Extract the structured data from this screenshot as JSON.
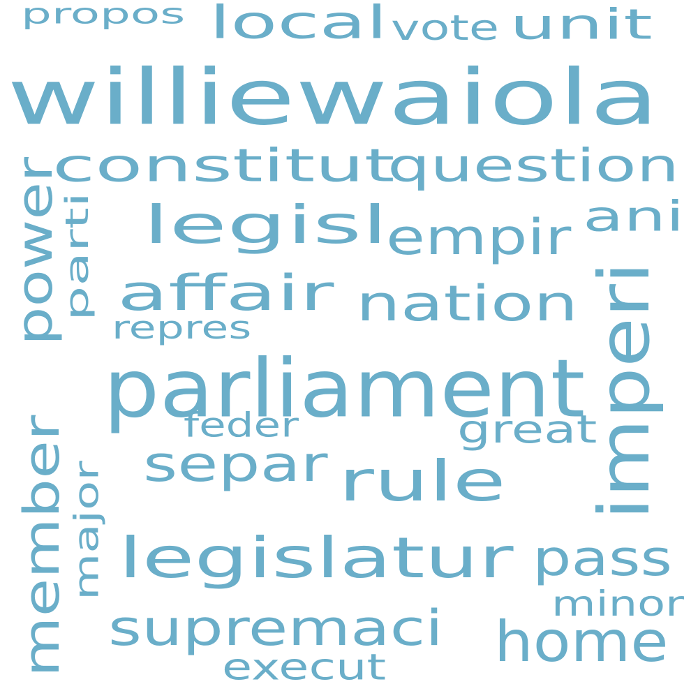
{
  "word_color": "#6aaec9",
  "background": "#ffffff",
  "words": [
    {
      "id": "williewaiola",
      "text": "williewaiola",
      "orientation": "horizontal"
    },
    {
      "id": "parliament",
      "text": "parliament",
      "orientation": "horizontal"
    },
    {
      "id": "constitut",
      "text": "constitut",
      "orientation": "horizontal"
    },
    {
      "id": "question",
      "text": "question",
      "orientation": "horizontal"
    },
    {
      "id": "legisl",
      "text": "legisl",
      "orientation": "horizontal"
    },
    {
      "id": "legislatur",
      "text": "legislatur",
      "orientation": "horizontal"
    },
    {
      "id": "rule",
      "text": "rule",
      "orientation": "horizontal"
    },
    {
      "id": "home",
      "text": "home",
      "orientation": "horizontal"
    },
    {
      "id": "imperi",
      "text": "imperi",
      "orientation": "vertical"
    },
    {
      "id": "member",
      "text": "member",
      "orientation": "vertical"
    },
    {
      "id": "power",
      "text": "power",
      "orientation": "vertical"
    },
    {
      "id": "supremaci",
      "text": "supremaci",
      "orientation": "horizontal"
    },
    {
      "id": "affair",
      "text": "affair",
      "orientation": "horizontal"
    },
    {
      "id": "nation",
      "text": "nation",
      "orientation": "horizontal"
    },
    {
      "id": "empir",
      "text": "empir",
      "orientation": "horizontal"
    },
    {
      "id": "separ",
      "text": "separ",
      "orientation": "horizontal"
    },
    {
      "id": "pass",
      "text": "pass",
      "orientation": "horizontal"
    },
    {
      "id": "local",
      "text": "local",
      "orientation": "horizontal"
    },
    {
      "id": "unit",
      "text": "unit",
      "orientation": "horizontal"
    },
    {
      "id": "ani",
      "text": "ani",
      "orientation": "horizontal"
    },
    {
      "id": "execut",
      "text": "execut",
      "orientation": "horizontal"
    },
    {
      "id": "great",
      "text": "great",
      "orientation": "horizontal"
    },
    {
      "id": "minor",
      "text": "minor",
      "orientation": "horizontal"
    },
    {
      "id": "propos",
      "text": "propos",
      "orientation": "horizontal"
    },
    {
      "id": "vote",
      "text": "vote",
      "orientation": "horizontal"
    },
    {
      "id": "major",
      "text": "major",
      "orientation": "vertical"
    },
    {
      "id": "parti",
      "text": "parti",
      "orientation": "vertical"
    },
    {
      "id": "repres",
      "text": "repres",
      "orientation": "horizontal"
    },
    {
      "id": "feder",
      "text": "feder",
      "orientation": "horizontal"
    }
  ]
}
